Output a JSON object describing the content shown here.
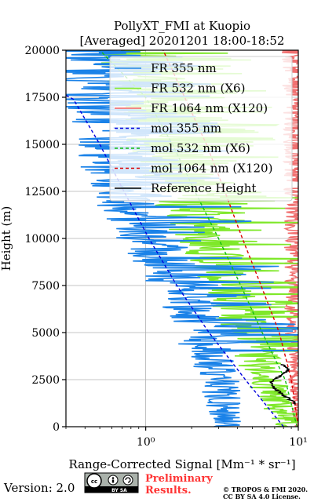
{
  "chart_data": {
    "type": "line",
    "title_line1": "PollyXT_FMI at Kuopio",
    "title_line2": "[Averaged] 20201201 18:00-18:52",
    "xlabel": "Range-Corrected Signal [Mm⁻¹ * sr⁻¹]",
    "ylabel": "Height (m)",
    "x_scale": "log",
    "xlim": [
      0.3,
      10
    ],
    "ylim": [
      0,
      20000
    ],
    "x_ticks": [
      {
        "value": 1,
        "label": "10⁰"
      },
      {
        "value": 10,
        "label": "10¹"
      }
    ],
    "y_ticks": [
      {
        "value": 0,
        "label": "0"
      },
      {
        "value": 2500,
        "label": "2500"
      },
      {
        "value": 5000,
        "label": "5000"
      },
      {
        "value": 7500,
        "label": "7500"
      },
      {
        "value": 10000,
        "label": "10000"
      },
      {
        "value": 12500,
        "label": "12500"
      },
      {
        "value": 15000,
        "label": "15000"
      },
      {
        "value": 17500,
        "label": "17500"
      },
      {
        "value": 20000,
        "label": "20000"
      }
    ],
    "grid": true,
    "legend_position": "top-right",
    "series": [
      {
        "name": "FR 355 nm",
        "style": "solid",
        "color": "#1a82e8",
        "profile": [
          [
            0,
            3.5
          ],
          [
            2500,
            3.0
          ],
          [
            5000,
            2.4
          ],
          [
            7500,
            1.6
          ],
          [
            10000,
            1.05
          ],
          [
            12500,
            0.75
          ],
          [
            15000,
            0.6
          ],
          [
            17500,
            0.5
          ],
          [
            20000,
            0.45
          ]
        ]
      },
      {
        "name": "FR 532 nm (X6)",
        "style": "solid",
        "color": "#7fe82a",
        "profile": [
          [
            0,
            9.0
          ],
          [
            2500,
            6.0
          ],
          [
            5000,
            4.8
          ],
          [
            7500,
            3.5
          ],
          [
            10000,
            2.5
          ],
          [
            12500,
            1.8
          ],
          [
            15000,
            1.4
          ],
          [
            17500,
            1.1
          ],
          [
            20000,
            0.9
          ]
        ]
      },
      {
        "name": "FR 1064 nm (X120)",
        "style": "solid",
        "color": "#f06060",
        "profile": [
          [
            0,
            9.8
          ],
          [
            2500,
            9.5
          ],
          [
            5000,
            9.2
          ],
          [
            7500,
            9.3
          ],
          [
            10000,
            9.4
          ],
          [
            12500,
            9.6
          ],
          [
            15000,
            9.7
          ],
          [
            17500,
            9.8
          ],
          [
            20000,
            9.9
          ]
        ]
      },
      {
        "name": "mol 355 nm",
        "style": "dashed",
        "color": "#0000dd",
        "profile": [
          [
            0,
            8.0
          ],
          [
            2500,
            4.5
          ],
          [
            5000,
            2.6
          ],
          [
            7500,
            1.6
          ],
          [
            10000,
            1.05
          ],
          [
            12500,
            0.72
          ],
          [
            15000,
            0.5
          ],
          [
            17500,
            0.33
          ],
          [
            17600,
            0.3
          ]
        ]
      },
      {
        "name": "mol 532 nm (X6)",
        "style": "dashed",
        "color": "#11bb11",
        "profile": [
          [
            0,
            9.8
          ],
          [
            2500,
            8.2
          ],
          [
            5000,
            5.8
          ],
          [
            7500,
            4.2
          ],
          [
            10000,
            3.0
          ],
          [
            12500,
            2.1
          ],
          [
            15000,
            1.5
          ],
          [
            17500,
            1.0
          ],
          [
            20000,
            0.5
          ]
        ]
      },
      {
        "name": "mol 1064 nm (X120)",
        "style": "dashed",
        "color": "#dd0000",
        "profile": [
          [
            0,
            10.0
          ],
          [
            2500,
            9.0
          ],
          [
            5000,
            7.5
          ],
          [
            7500,
            5.7
          ],
          [
            10000,
            4.3
          ],
          [
            12500,
            3.3
          ],
          [
            15000,
            2.5
          ],
          [
            17500,
            1.8
          ],
          [
            20000,
            1.3
          ]
        ]
      },
      {
        "name": "Reference Height",
        "style": "solid",
        "color": "#000000",
        "profile": [
          [
            1200,
            9.7
          ],
          [
            1500,
            8.6
          ],
          [
            1800,
            7.6
          ],
          [
            2100,
            6.9
          ],
          [
            2400,
            6.6
          ],
          [
            2700,
            7.6
          ],
          [
            3000,
            8.6
          ],
          [
            3300,
            7.9
          ]
        ]
      }
    ]
  },
  "footer": {
    "version_label": "Version: 2.0",
    "cc_badge": "BY SA",
    "preliminary_line1": "Preliminary",
    "preliminary_line2": "Results.",
    "copyright_line1": "© TROPOS & FMI 2020.",
    "copyright_line2": "CC BY SA 4.0 License."
  }
}
